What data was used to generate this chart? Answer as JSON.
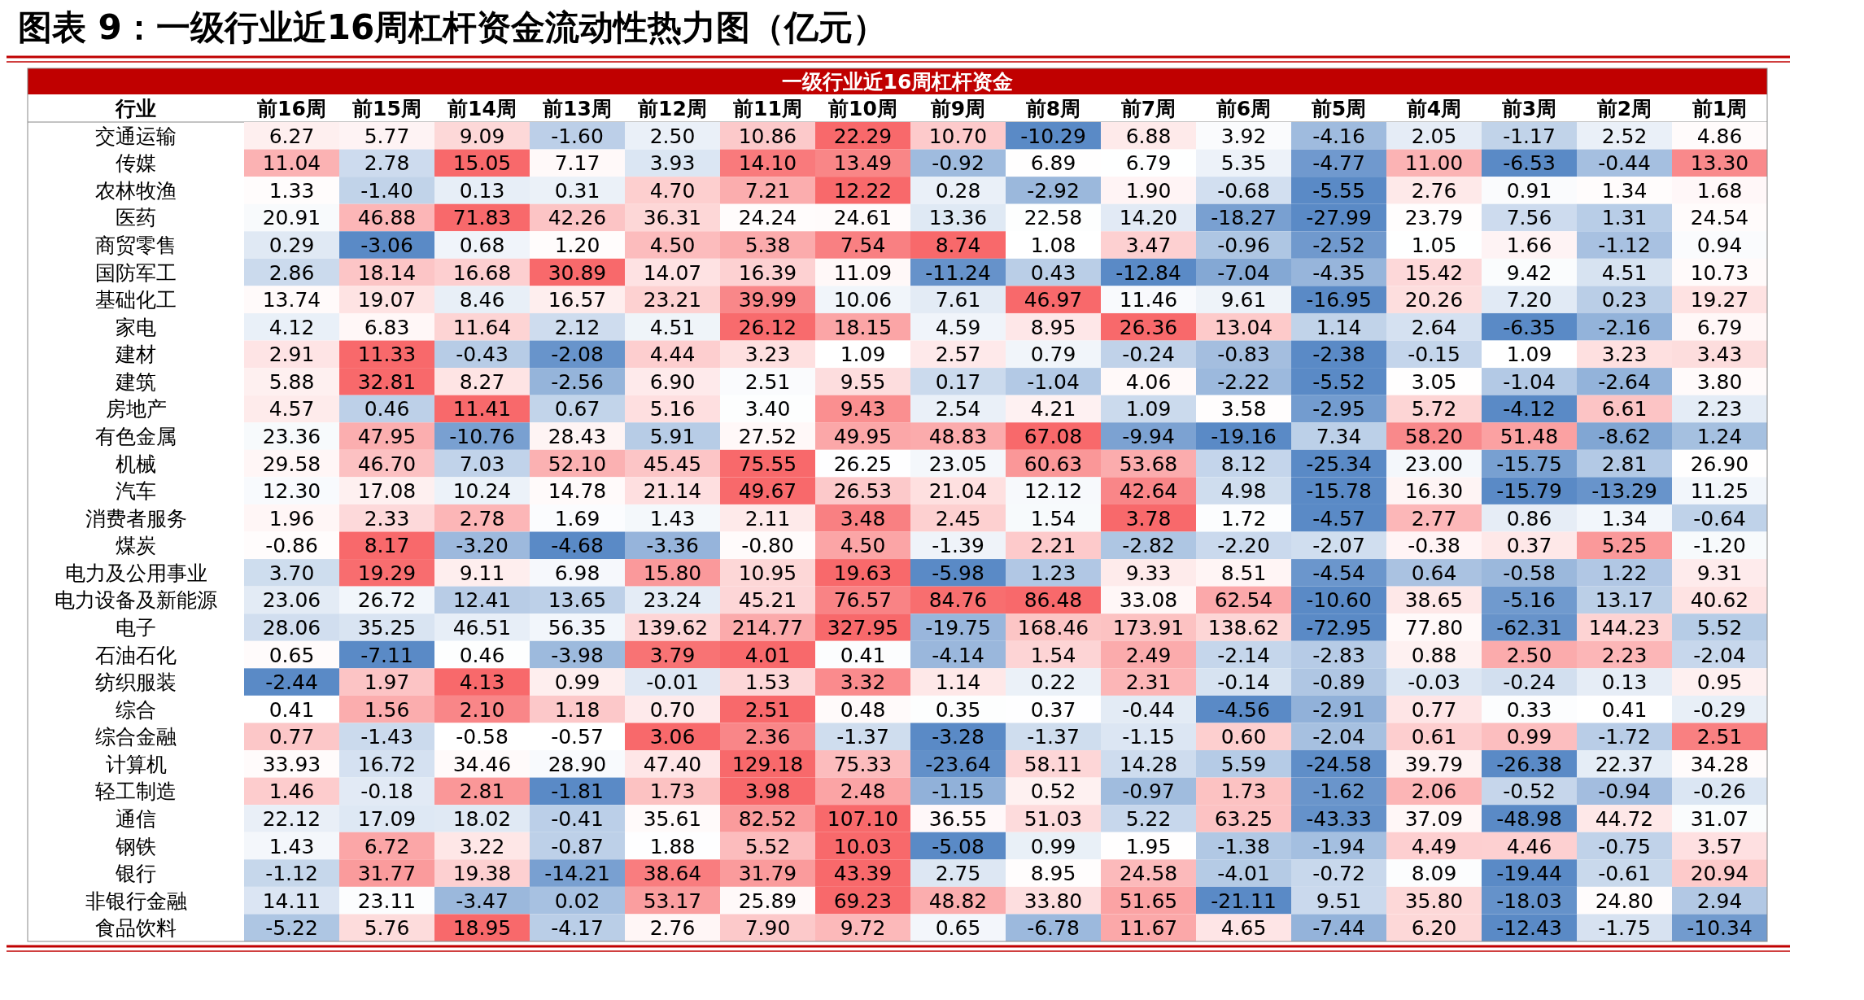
{
  "chart_data": {
    "type": "heatmap",
    "title": "图表 9：一级行业近16周杠杆资金流动性热力图（亿元）",
    "subtitle": "一级行业近16周杠杆资金",
    "ylabel": "行业",
    "data_labels": true,
    "categories": [
      "前16周",
      "前15周",
      "前14周",
      "前13周",
      "前12周",
      "前11周",
      "前10周",
      "前9周",
      "前8周",
      "前7周",
      "前6周",
      "前5周",
      "前4周",
      "前3周",
      "前2周",
      "前1周"
    ],
    "y_categories": [
      "交通运输",
      "传媒",
      "农林牧渔",
      "医药",
      "商贸零售",
      "国防军工",
      "基础化工",
      "家电",
      "建材",
      "建筑",
      "房地产",
      "有色金属",
      "机械",
      "汽车",
      "消费者服务",
      "煤炭",
      "电力及公用事业",
      "电力设备及新能源",
      "电子",
      "石油石化",
      "纺织服装",
      "综合",
      "综合金融",
      "计算机",
      "轻工制造",
      "通信",
      "钢铁",
      "银行",
      "非银行金融",
      "食品饮料"
    ],
    "cells": [
      [
        6.27,
        5.77,
        9.09,
        -1.6,
        2.5,
        10.86,
        22.29,
        10.7,
        -10.29,
        6.88,
        3.92,
        -4.16,
        2.05,
        -1.17,
        2.52,
        4.86
      ],
      [
        11.04,
        2.78,
        15.05,
        7.17,
        3.93,
        14.1,
        13.49,
        -0.92,
        6.89,
        6.79,
        5.35,
        -4.77,
        11.0,
        -6.53,
        -0.44,
        13.3
      ],
      [
        1.33,
        -1.4,
        0.13,
        0.31,
        4.7,
        7.21,
        12.22,
        0.28,
        -2.92,
        1.9,
        -0.68,
        -5.55,
        2.76,
        0.91,
        1.34,
        1.68
      ],
      [
        20.91,
        46.88,
        71.83,
        42.26,
        36.31,
        24.24,
        24.61,
        13.36,
        22.58,
        14.2,
        -18.27,
        -27.99,
        23.79,
        7.56,
        1.31,
        24.54
      ],
      [
        0.29,
        -3.06,
        0.68,
        1.2,
        4.5,
        5.38,
        7.54,
        8.74,
        1.08,
        3.47,
        -0.96,
        -2.52,
        1.05,
        1.66,
        -1.12,
        0.94
      ],
      [
        2.86,
        18.14,
        16.68,
        30.89,
        14.07,
        16.39,
        11.09,
        -11.24,
        0.43,
        -12.84,
        -7.04,
        -4.35,
        15.42,
        9.42,
        4.51,
        10.73
      ],
      [
        13.74,
        19.07,
        8.46,
        16.57,
        23.21,
        39.99,
        10.06,
        7.61,
        46.97,
        11.46,
        9.61,
        -16.95,
        20.26,
        7.2,
        0.23,
        19.27
      ],
      [
        4.12,
        6.83,
        11.64,
        2.12,
        4.51,
        26.12,
        18.15,
        4.59,
        8.95,
        26.36,
        13.04,
        1.14,
        2.64,
        -6.35,
        -2.16,
        6.79
      ],
      [
        2.91,
        11.33,
        -0.43,
        -2.08,
        4.44,
        3.23,
        1.09,
        2.57,
        0.79,
        -0.24,
        -0.83,
        -2.38,
        -0.15,
        1.09,
        3.23,
        3.43
      ],
      [
        5.88,
        32.81,
        8.27,
        -2.56,
        6.9,
        2.51,
        9.55,
        0.17,
        -1.04,
        4.06,
        -2.22,
        -5.52,
        3.05,
        -1.04,
        -2.64,
        3.8
      ],
      [
        4.57,
        0.46,
        11.41,
        0.67,
        5.16,
        3.4,
        9.43,
        2.54,
        4.21,
        1.09,
        3.58,
        -2.95,
        5.72,
        -4.12,
        6.61,
        2.23
      ],
      [
        23.36,
        47.95,
        -10.76,
        28.43,
        5.91,
        27.52,
        49.95,
        48.83,
        67.08,
        -9.94,
        -19.16,
        7.34,
        58.2,
        51.48,
        -8.62,
        1.24
      ],
      [
        29.58,
        46.7,
        7.03,
        52.1,
        45.45,
        75.55,
        26.25,
        23.05,
        60.63,
        53.68,
        8.12,
        -25.34,
        23.0,
        -15.75,
        2.81,
        26.9
      ],
      [
        12.3,
        17.08,
        10.24,
        14.78,
        21.14,
        49.67,
        26.53,
        21.04,
        12.12,
        42.64,
        4.98,
        -15.78,
        16.3,
        -15.79,
        -13.29,
        11.25
      ],
      [
        1.96,
        2.33,
        2.78,
        1.69,
        1.43,
        2.11,
        3.48,
        2.45,
        1.54,
        3.78,
        1.72,
        -4.57,
        2.77,
        0.86,
        1.34,
        -0.64
      ],
      [
        -0.86,
        8.17,
        -3.2,
        -4.68,
        -3.36,
        -0.8,
        4.5,
        -1.39,
        2.21,
        -2.82,
        -2.2,
        -2.07,
        -0.38,
        0.37,
        5.25,
        -1.2
      ],
      [
        3.7,
        19.29,
        9.11,
        6.98,
        15.8,
        10.95,
        19.63,
        -5.98,
        1.23,
        9.33,
        8.51,
        -4.54,
        0.64,
        -0.58,
        1.22,
        9.31
      ],
      [
        23.06,
        26.72,
        12.41,
        13.65,
        23.24,
        45.21,
        76.57,
        84.76,
        86.48,
        33.08,
        62.54,
        -10.6,
        38.65,
        -5.16,
        13.17,
        40.62
      ],
      [
        28.06,
        35.25,
        46.51,
        56.35,
        139.62,
        214.77,
        327.95,
        -19.75,
        168.46,
        173.91,
        138.62,
        -72.95,
        77.8,
        -62.31,
        144.23,
        5.52
      ],
      [
        0.65,
        -7.11,
        0.46,
        -3.98,
        3.79,
        4.01,
        0.41,
        -4.14,
        1.54,
        2.49,
        -2.14,
        -2.83,
        0.88,
        2.5,
        2.23,
        -2.04
      ],
      [
        -2.44,
        1.97,
        4.13,
        0.99,
        -0.01,
        1.53,
        3.32,
        1.14,
        0.22,
        2.31,
        -0.14,
        -0.89,
        -0.03,
        -0.24,
        0.13,
        0.95
      ],
      [
        0.41,
        1.56,
        2.1,
        1.18,
        0.7,
        2.51,
        0.48,
        0.35,
        0.37,
        -0.44,
        -4.56,
        -2.91,
        0.77,
        0.33,
        0.41,
        -0.29
      ],
      [
        0.77,
        -1.43,
        -0.58,
        -0.57,
        3.06,
        2.36,
        -1.37,
        -3.28,
        -1.37,
        -1.15,
        0.6,
        -2.04,
        0.61,
        0.99,
        -1.72,
        2.51
      ],
      [
        33.93,
        16.72,
        34.46,
        28.9,
        47.4,
        129.18,
        75.33,
        -23.64,
        58.11,
        14.28,
        5.59,
        -24.58,
        39.79,
        -26.38,
        22.37,
        34.28
      ],
      [
        1.46,
        -0.18,
        2.81,
        -1.81,
        1.73,
        3.98,
        2.48,
        -1.15,
        0.52,
        -0.97,
        1.73,
        -1.62,
        2.06,
        -0.52,
        -0.94,
        -0.26
      ],
      [
        22.12,
        17.09,
        18.02,
        -0.41,
        35.61,
        82.52,
        107.1,
        36.55,
        51.03,
        5.22,
        63.25,
        -43.33,
        37.09,
        -48.98,
        44.72,
        31.07
      ],
      [
        1.43,
        6.72,
        3.22,
        -0.87,
        1.88,
        5.52,
        10.03,
        -5.08,
        0.99,
        1.95,
        -1.38,
        -1.94,
        4.49,
        4.46,
        -0.75,
        3.57
      ],
      [
        -1.12,
        31.77,
        19.38,
        -14.21,
        38.64,
        31.79,
        43.39,
        2.75,
        8.95,
        24.58,
        -4.01,
        -0.72,
        8.09,
        -19.44,
        -0.61,
        20.94
      ],
      [
        14.11,
        23.11,
        -3.47,
        0.02,
        53.17,
        25.89,
        69.23,
        48.82,
        33.8,
        51.65,
        -21.11,
        9.51,
        35.8,
        -18.03,
        24.8,
        2.94
      ],
      [
        -5.22,
        5.76,
        18.95,
        -4.17,
        2.76,
        7.9,
        9.72,
        0.65,
        -6.78,
        11.67,
        4.65,
        -7.44,
        6.2,
        -12.43,
        -1.75,
        -10.34
      ]
    ],
    "cell_labels": [
      [
        "6.27",
        "5.77",
        "9.09",
        "-1.60",
        "2.50",
        "10.86",
        "22.29",
        "10.70",
        "-10.29",
        "6.88",
        "3.92",
        "-4.16",
        "2.05",
        "-1.17",
        "2.52",
        "4.86"
      ],
      [
        "11.04",
        "2.78",
        "15.05",
        "7.17",
        "3.93",
        "14.10",
        "13.49",
        "-0.92",
        "6.89",
        "6.79",
        "5.35",
        "-4.77",
        "11.00",
        "-6.53",
        "-0.44",
        "13.30"
      ],
      [
        "1.33",
        "-1.40",
        "0.13",
        "0.31",
        "4.70",
        "7.21",
        "12.22",
        "0.28",
        "-2.92",
        "1.90",
        "-0.68",
        "-5.55",
        "2.76",
        "0.91",
        "1.34",
        "1.68"
      ],
      [
        "20.91",
        "46.88",
        "71.83",
        "42.26",
        "36.31",
        "24.24",
        "24.61",
        "13.36",
        "22.58",
        "14.20",
        "-18.27",
        "-27.99",
        "23.79",
        "7.56",
        "1.31",
        "24.54"
      ],
      [
        "0.29",
        "-3.06",
        "0.68",
        "1.20",
        "4.50",
        "5.38",
        "7.54",
        "8.74",
        "1.08",
        "3.47",
        "-0.96",
        "-2.52",
        "1.05",
        "1.66",
        "-1.12",
        "0.94"
      ],
      [
        "2.86",
        "18.14",
        "16.68",
        "30.89",
        "14.07",
        "16.39",
        "11.09",
        "-11.24",
        "0.43",
        "-12.84",
        "-7.04",
        "-4.35",
        "15.42",
        "9.42",
        "4.51",
        "10.73"
      ],
      [
        "13.74",
        "19.07",
        "8.46",
        "16.57",
        "23.21",
        "39.99",
        "10.06",
        "7.61",
        "46.97",
        "11.46",
        "9.61",
        "-16.95",
        "20.26",
        "7.20",
        "0.23",
        "19.27"
      ],
      [
        "4.12",
        "6.83",
        "11.64",
        "2.12",
        "4.51",
        "26.12",
        "18.15",
        "4.59",
        "8.95",
        "26.36",
        "13.04",
        "1.14",
        "2.64",
        "-6.35",
        "-2.16",
        "6.79"
      ],
      [
        "2.91",
        "11.33",
        "-0.43",
        "-2.08",
        "4.44",
        "3.23",
        "1.09",
        "2.57",
        "0.79",
        "-0.24",
        "-0.83",
        "-2.38",
        "-0.15",
        "1.09",
        "3.23",
        "3.43"
      ],
      [
        "5.88",
        "32.81",
        "8.27",
        "-2.56",
        "6.90",
        "2.51",
        "9.55",
        "0.17",
        "-1.04",
        "4.06",
        "-2.22",
        "-5.52",
        "3.05",
        "-1.04",
        "-2.64",
        "3.80"
      ],
      [
        "4.57",
        "0.46",
        "11.41",
        "0.67",
        "5.16",
        "3.40",
        "9.43",
        "2.54",
        "4.21",
        "1.09",
        "3.58",
        "-2.95",
        "5.72",
        "-4.12",
        "6.61",
        "2.23"
      ],
      [
        "23.36",
        "47.95",
        "-10.76",
        "28.43",
        "5.91",
        "27.52",
        "49.95",
        "48.83",
        "67.08",
        "-9.94",
        "-19.16",
        "7.34",
        "58.20",
        "51.48",
        "-8.62",
        "1.24"
      ],
      [
        "29.58",
        "46.70",
        "7.03",
        "52.10",
        "45.45",
        "75.55",
        "26.25",
        "23.05",
        "60.63",
        "53.68",
        "8.12",
        "-25.34",
        "23.00",
        "-15.75",
        "2.81",
        "26.90"
      ],
      [
        "12.30",
        "17.08",
        "10.24",
        "14.78",
        "21.14",
        "49.67",
        "26.53",
        "21.04",
        "12.12",
        "42.64",
        "4.98",
        "-15.78",
        "16.30",
        "-15.79",
        "-13.29",
        "11.25"
      ],
      [
        "1.96",
        "2.33",
        "2.78",
        "1.69",
        "1.43",
        "2.11",
        "3.48",
        "2.45",
        "1.54",
        "3.78",
        "1.72",
        "-4.57",
        "2.77",
        "0.86",
        "1.34",
        "-0.64"
      ],
      [
        "-0.86",
        "8.17",
        "-3.20",
        "-4.68",
        "-3.36",
        "-0.80",
        "4.50",
        "-1.39",
        "2.21",
        "-2.82",
        "-2.20",
        "-2.07",
        "-0.38",
        "0.37",
        "5.25",
        "-1.20"
      ],
      [
        "3.70",
        "19.29",
        "9.11",
        "6.98",
        "15.80",
        "10.95",
        "19.63",
        "-5.98",
        "1.23",
        "9.33",
        "8.51",
        "-4.54",
        "0.64",
        "-0.58",
        "1.22",
        "9.31"
      ],
      [
        "23.06",
        "26.72",
        "12.41",
        "13.65",
        "23.24",
        "45.21",
        "76.57",
        "84.76",
        "86.48",
        "33.08",
        "62.54",
        "-10.60",
        "38.65",
        "-5.16",
        "13.17",
        "40.62"
      ],
      [
        "28.06",
        "35.25",
        "46.51",
        "56.35",
        "139.62",
        "214.77",
        "327.95",
        "-19.75",
        "168.46",
        "173.91",
        "138.62",
        "-72.95",
        "77.80",
        "-62.31",
        "144.23",
        "5.52"
      ],
      [
        "0.65",
        "-7.11",
        "0.46",
        "-3.98",
        "3.79",
        "4.01",
        "0.41",
        "-4.14",
        "1.54",
        "2.49",
        "-2.14",
        "-2.83",
        "0.88",
        "2.50",
        "2.23",
        "-2.04"
      ],
      [
        "-2.44",
        "1.97",
        "4.13",
        "0.99",
        "-0.01",
        "1.53",
        "3.32",
        "1.14",
        "0.22",
        "2.31",
        "-0.14",
        "-0.89",
        "-0.03",
        "-0.24",
        "0.13",
        "0.95"
      ],
      [
        "0.41",
        "1.56",
        "2.10",
        "1.18",
        "0.70",
        "2.51",
        "0.48",
        "0.35",
        "0.37",
        "-0.44",
        "-4.56",
        "-2.91",
        "0.77",
        "0.33",
        "0.41",
        "-0.29"
      ],
      [
        "0.77",
        "-1.43",
        "-0.58",
        "-0.57",
        "3.06",
        "2.36",
        "-1.37",
        "-3.28",
        "-1.37",
        "-1.15",
        "0.60",
        "-2.04",
        "0.61",
        "0.99",
        "-1.72",
        "2.51"
      ],
      [
        "33.93",
        "16.72",
        "34.46",
        "28.90",
        "47.40",
        "129.18",
        "75.33",
        "-23.64",
        "58.11",
        "14.28",
        "5.59",
        "-24.58",
        "39.79",
        "-26.38",
        "22.37",
        "34.28"
      ],
      [
        "1.46",
        "-0.18",
        "2.81",
        "-1.81",
        "1.73",
        "3.98",
        "2.48",
        "-1.15",
        "0.52",
        "-0.97",
        "1.73",
        "-1.62",
        "2.06",
        "-0.52",
        "-0.94",
        "-0.26"
      ],
      [
        "22.12",
        "17.09",
        "18.02",
        "-0.41",
        "35.61",
        "82.52",
        "107.10",
        "36.55",
        "51.03",
        "5.22",
        "63.25",
        "-43.33",
        "37.09",
        "-48.98",
        "44.72",
        "31.07"
      ],
      [
        "1.43",
        "6.72",
        "3.22",
        "-0.87",
        "1.88",
        "5.52",
        "10.03",
        "-5.08",
        "0.99",
        "1.95",
        "-1.38",
        "-1.94",
        "4.49",
        "4.46",
        "-0.75",
        "3.57"
      ],
      [
        "-1.12",
        "31.77",
        "19.38",
        "-14.21",
        "38.64",
        "31.79",
        "43.39",
        "2.75",
        "8.95",
        "24.58",
        "-4.01",
        "-0.72",
        "8.09",
        "-19.44",
        "-0.61",
        "20.94"
      ],
      [
        "14.11",
        "23.11",
        "-3.47",
        "0.02",
        "53.17",
        "25.89",
        "69.23",
        "48.82",
        "33.80",
        "51.65",
        "-21.11",
        "9.51",
        "35.80",
        "-18.03",
        "24.80",
        "2.94"
      ],
      [
        "-5.22",
        "5.76",
        "18.95",
        "-4.17",
        "2.76",
        "7.90",
        "9.72",
        "0.65",
        "-6.78",
        "11.67",
        "4.65",
        "-7.44",
        "6.20",
        "-12.43",
        "-1.75",
        "-10.34"
      ]
    ]
  }
}
